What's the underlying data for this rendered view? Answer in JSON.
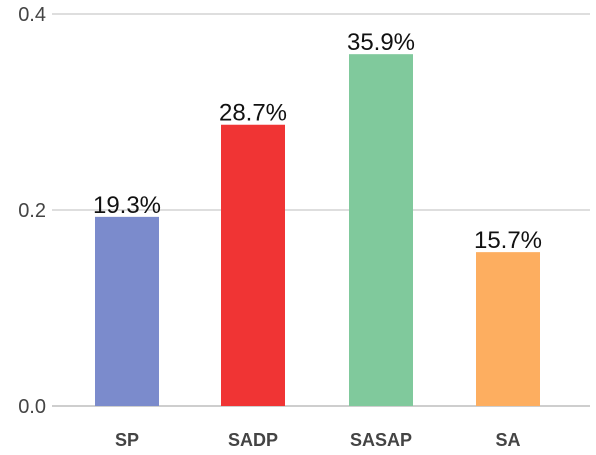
{
  "chart_data": {
    "type": "bar",
    "categories": [
      "SP",
      "SADP",
      "SASAP",
      "SA"
    ],
    "values": [
      0.193,
      0.287,
      0.359,
      0.157
    ],
    "data_labels": [
      "19.3%",
      "28.7%",
      "35.9%",
      "15.7%"
    ],
    "colors": [
      "#7b8bcc",
      "#f03434",
      "#80c99c",
      "#fdae60"
    ],
    "title": "",
    "xlabel": "",
    "ylabel": "",
    "ylim": [
      0,
      0.4
    ],
    "yticks": [
      0.0,
      0.2,
      0.4
    ],
    "ytick_labels": [
      "0.0",
      "0.2",
      "0.4"
    ],
    "grid": true,
    "legend": "none"
  }
}
